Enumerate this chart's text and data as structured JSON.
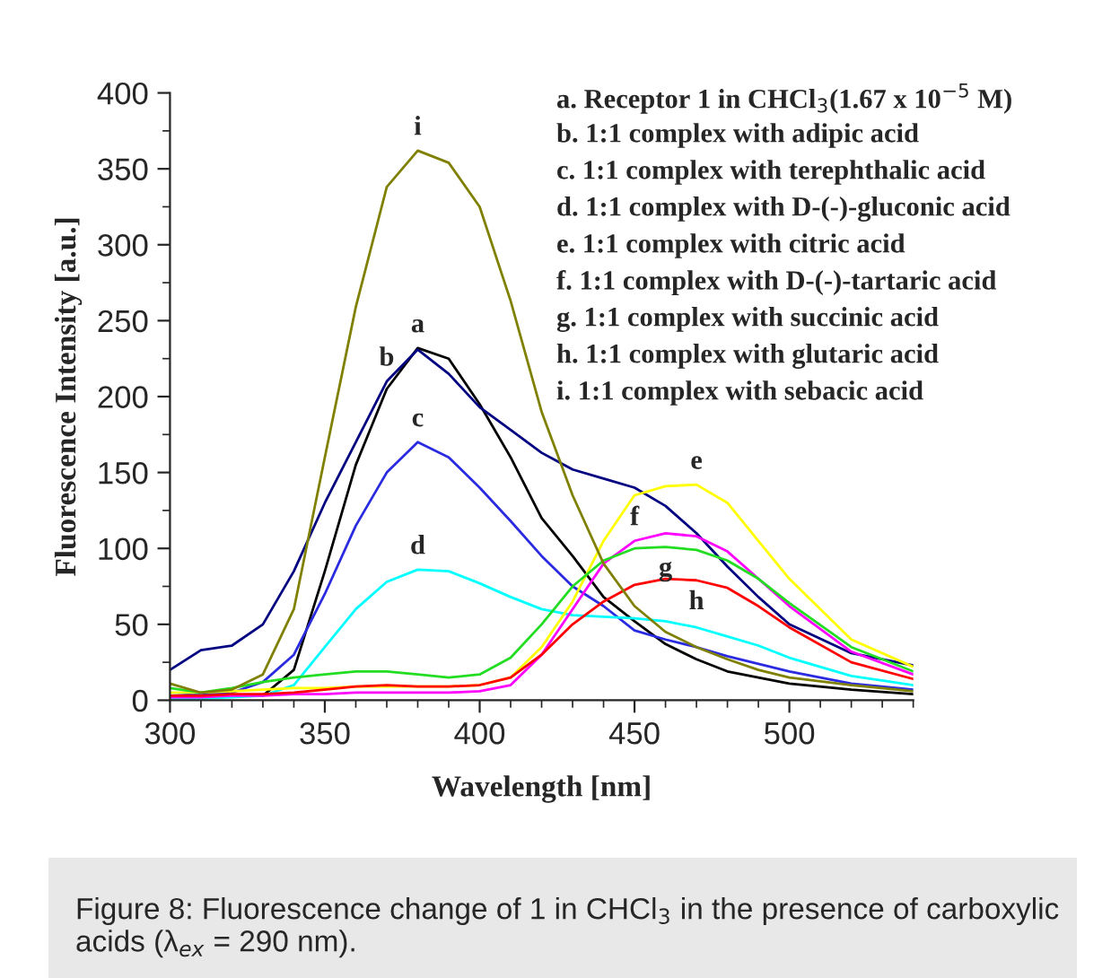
{
  "chart_data": {
    "type": "line",
    "xlabel": "Wavelength [nm]",
    "ylabel": "Fluorescence Intensity [a.u.]",
    "xlim": [
      300,
      540
    ],
    "xticks": [
      300,
      350,
      400,
      450,
      500
    ],
    "ylim": [
      0,
      400
    ],
    "yticks": [
      0,
      50,
      100,
      150,
      200,
      250,
      300,
      350,
      400
    ],
    "grid": false,
    "legend": false,
    "marker": "none",
    "line_style": "solid",
    "x": [
      300,
      310,
      320,
      330,
      340,
      350,
      360,
      370,
      380,
      390,
      400,
      410,
      420,
      430,
      440,
      450,
      460,
      470,
      480,
      490,
      500,
      520,
      540
    ],
    "series": [
      {
        "color": "#000000",
        "values": [
          3,
          3,
          3,
          3,
          20,
          85,
          155,
          205,
          232,
          225,
          195,
          160,
          120,
          95,
          68,
          52,
          37,
          27,
          19,
          15,
          11,
          7,
          4
        ]
      },
      {
        "color": "#000080",
        "values": [
          20,
          33,
          36,
          50,
          85,
          130,
          170,
          210,
          231,
          215,
          193,
          178,
          163,
          152,
          146,
          140,
          128,
          110,
          88,
          68,
          50,
          31,
          23
        ]
      },
      {
        "color": "#2a2ae0",
        "values": [
          3,
          4,
          5,
          12,
          30,
          70,
          115,
          150,
          170,
          160,
          140,
          118,
          95,
          75,
          62,
          46,
          40,
          35,
          29,
          24,
          19,
          11,
          7
        ]
      },
      {
        "color": "#00ffff",
        "values": [
          1,
          1,
          2,
          3,
          10,
          35,
          60,
          78,
          86,
          85,
          77,
          68,
          60,
          56,
          55,
          54,
          52,
          48,
          42,
          36,
          28,
          16,
          10
        ]
      },
      {
        "color": "#ffff00",
        "values": [
          5,
          5,
          6,
          7,
          8,
          8,
          9,
          9,
          9,
          9,
          10,
          15,
          35,
          65,
          105,
          135,
          141,
          142,
          130,
          105,
          80,
          40,
          22
        ]
      },
      {
        "color": "#ff00ff",
        "values": [
          2,
          2,
          3,
          3,
          4,
          4,
          5,
          5,
          5,
          5,
          6,
          10,
          30,
          60,
          90,
          105,
          110,
          108,
          98,
          80,
          62,
          32,
          17
        ]
      },
      {
        "color": "#22dd22",
        "values": [
          8,
          5,
          8,
          12,
          15,
          17,
          19,
          19,
          17,
          15,
          17,
          28,
          50,
          75,
          92,
          100,
          101,
          99,
          92,
          80,
          64,
          35,
          19
        ]
      },
      {
        "color": "#ff0000",
        "values": [
          3,
          3,
          4,
          4,
          5,
          7,
          9,
          10,
          9,
          9,
          10,
          15,
          30,
          50,
          65,
          76,
          80,
          79,
          74,
          62,
          48,
          25,
          14
        ]
      },
      {
        "color": "#808000",
        "values": [
          11,
          5,
          7,
          17,
          60,
          160,
          259,
          338,
          362,
          354,
          325,
          263,
          190,
          135,
          90,
          62,
          45,
          35,
          27,
          20,
          15,
          10,
          6
        ]
      }
    ],
    "annotations": [
      {
        "text": "a",
        "x": 380,
        "y": 232
      },
      {
        "text": "b",
        "x": 370,
        "y": 210
      },
      {
        "text": "c",
        "x": 380,
        "y": 170
      },
      {
        "text": "d",
        "x": 380,
        "y": 86
      },
      {
        "text": "e",
        "x": 470,
        "y": 142
      },
      {
        "text": "f",
        "x": 450,
        "y": 105
      },
      {
        "text": "g",
        "x": 460,
        "y": 101
      },
      {
        "text": "h",
        "x": 470,
        "y": 79
      },
      {
        "text": "i",
        "x": 380,
        "y": 362
      },
      "a. Receptor 1 in CHCl$_{3}$(1.67 x 10$^{−5}$ M)",
      "b. 1:1 complex with adipic acid",
      "c. 1:1 complex with terephthalic acid",
      "d. 1:1 complex with D-(-)-gluconic acid",
      "e. 1:1 complex with citric acid",
      "f. 1:1 complex with D-(-)-tartaric acid",
      "g. 1:1 complex with succinic acid",
      "h. 1:1 complex with glutaric acid",
      "i. 1:1 complex with sebacic acid",
      "Figure 8: Fluorescence change of 1 in CHCl$_{3}$ in the presence of carboxylic acids (λ$_{ex}$ = 290 nm)."
    ]
  }
}
